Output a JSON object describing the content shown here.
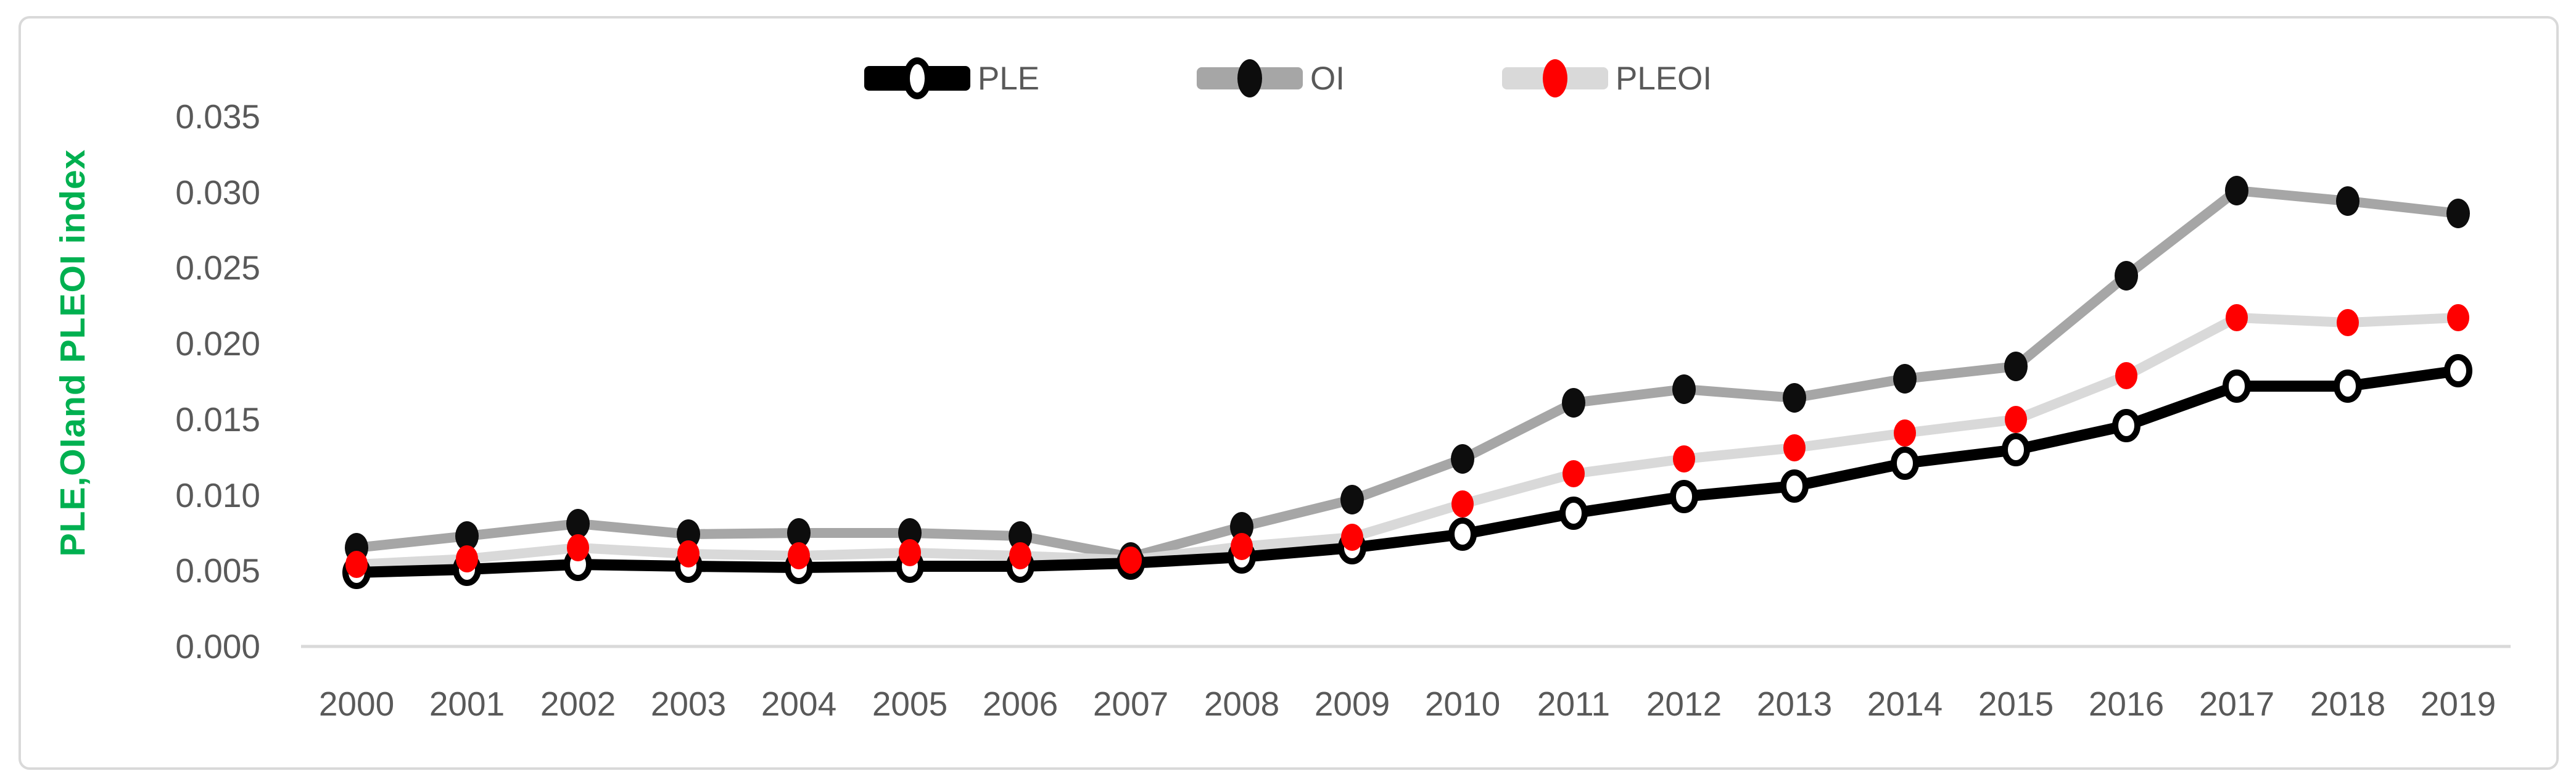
{
  "chart_data": {
    "type": "line",
    "title": "",
    "xlabel": "",
    "ylabel": "PLE,OIand PLEOI index",
    "ylim": [
      0,
      0.035
    ],
    "grid": false,
    "legend_position": "top-center",
    "categories": [
      "2000",
      "2001",
      "2002",
      "2003",
      "2004",
      "2005",
      "2006",
      "2007",
      "2008",
      "2009",
      "2010",
      "2011",
      "2012",
      "2013",
      "2014",
      "2015",
      "2016",
      "2017",
      "2018",
      "2019"
    ],
    "yticks": [
      "0.035",
      "0.030",
      "0.025",
      "0.020",
      "0.015",
      "0.010",
      "0.005",
      "0.000"
    ],
    "series": [
      {
        "name": "PLE",
        "line_color": "#000000",
        "marker_fill": "#ffffff",
        "marker_stroke": "#000000",
        "values": [
          0.0049,
          0.0051,
          0.0054,
          0.0053,
          0.0052,
          0.0053,
          0.0053,
          0.0055,
          0.0059,
          0.0065,
          0.0074,
          0.0088,
          0.0099,
          0.0106,
          0.0121,
          0.013,
          0.0146,
          0.0172,
          0.0172,
          0.0182
        ]
      },
      {
        "name": "OI",
        "line_color": "#a6a6a6",
        "marker_fill": "#0d0d0d",
        "marker_stroke": "none",
        "values": [
          0.0065,
          0.0073,
          0.0081,
          0.0074,
          0.0075,
          0.0075,
          0.0073,
          0.0059,
          0.0079,
          0.0097,
          0.0124,
          0.0161,
          0.017,
          0.0164,
          0.0177,
          0.0185,
          0.0245,
          0.0301,
          0.0294,
          0.0286
        ]
      },
      {
        "name": "PLEOI",
        "line_color": "#d9d9d9",
        "marker_fill": "#ff0000",
        "marker_stroke": "none",
        "values": [
          0.0054,
          0.0058,
          0.0065,
          0.0061,
          0.006,
          0.0062,
          0.006,
          0.0057,
          0.0066,
          0.0072,
          0.0094,
          0.0114,
          0.0124,
          0.0131,
          0.0141,
          0.015,
          0.0179,
          0.0217,
          0.0214,
          0.0217
        ]
      }
    ],
    "colors": {
      "axis_line": "#d9d9d9",
      "tick_text": "#595959",
      "y_title": "#00b050",
      "background": "#ffffff",
      "border": "#d9d9d9"
    }
  }
}
